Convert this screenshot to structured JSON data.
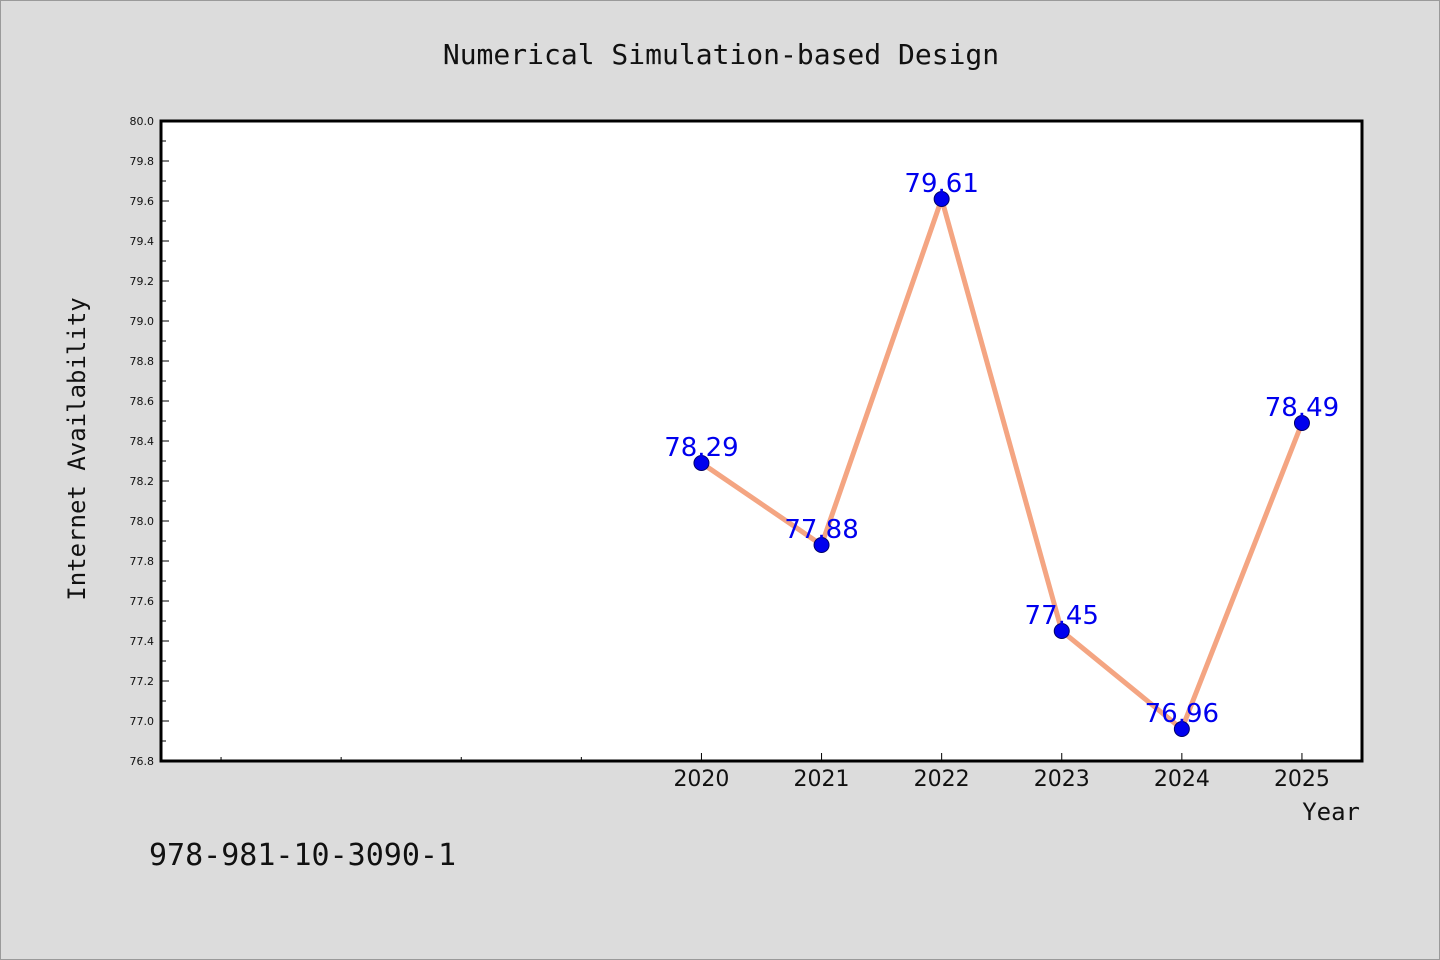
{
  "chart_data": {
    "type": "line",
    "title": "Numerical Simulation-based Design",
    "xlabel": "Year",
    "ylabel": "Internet Availability",
    "x": [
      2020,
      2021,
      2022,
      2023,
      2024,
      2025
    ],
    "xtick_labels": [
      "2020",
      "2021",
      "2022",
      "2023",
      "2024",
      "2025"
    ],
    "x_range": [
      2015.5,
      2025.5
    ],
    "minor_x_ticks": [
      2016,
      2017,
      2018,
      2019
    ],
    "series": [
      {
        "values": [
          78.29,
          77.88,
          79.61,
          77.45,
          76.96,
          78.49
        ],
        "labels": [
          "78.29",
          "77.88",
          "79.61",
          "77.45",
          "76.96",
          "78.49"
        ]
      }
    ],
    "ylim": [
      76.8,
      80.0
    ],
    "ytick_step": 0.2,
    "ytick_labels": [
      "76.8",
      "77.0",
      "77.2",
      "77.4",
      "77.6",
      "77.8",
      "78.0",
      "78.2",
      "78.4",
      "78.6",
      "78.8",
      "79.0",
      "79.2",
      "79.4",
      "79.6",
      "79.8",
      "80.0"
    ],
    "grid": false,
    "legend": "none",
    "colors": {
      "background": "#dcdcdc",
      "plot_background": "#ffffff",
      "line": "#f4a582",
      "marker": "#0000ee",
      "data_label": "#0000ee",
      "axis": "#000000"
    }
  },
  "footer": {
    "isbn": "978-981-10-3090-1"
  }
}
